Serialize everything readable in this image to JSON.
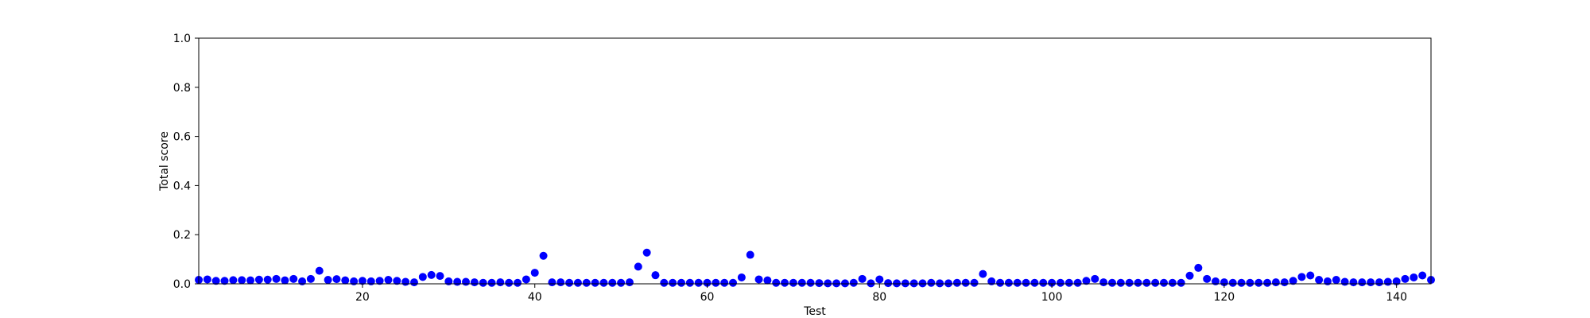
{
  "chart_data": {
    "type": "scatter",
    "title": "",
    "xlabel": "Test",
    "ylabel": "Total score",
    "xlim": [
      1,
      144
    ],
    "ylim": [
      0,
      1.0
    ],
    "xticks": [
      20,
      40,
      60,
      80,
      100,
      120,
      140
    ],
    "yticks": [
      0.0,
      0.2,
      0.4,
      0.6,
      0.8,
      1.0
    ],
    "ytick_labels": [
      "0.0",
      "0.2",
      "0.4",
      "0.6",
      "0.8",
      "1.0"
    ],
    "grid": false,
    "marker_color": "#0000ff",
    "series": [
      {
        "x": [
          1,
          2,
          3,
          4,
          5,
          6,
          7,
          8,
          9,
          10,
          11,
          12,
          13,
          14,
          15,
          16,
          17,
          18,
          19,
          20,
          21,
          22,
          23,
          24,
          25,
          26,
          27,
          28,
          29,
          30,
          31,
          32,
          33,
          34,
          35,
          36,
          37,
          38,
          39,
          40,
          41,
          42,
          43,
          44,
          45,
          46,
          47,
          48,
          49,
          50,
          51,
          52,
          53,
          54,
          55,
          56,
          57,
          58,
          59,
          60,
          61,
          62,
          63,
          64,
          65,
          66,
          67,
          68,
          69,
          70,
          71,
          72,
          73,
          74,
          75,
          76,
          77,
          78,
          79,
          80,
          81,
          82,
          83,
          84,
          85,
          86,
          87,
          88,
          89,
          90,
          91,
          92,
          93,
          94,
          95,
          96,
          97,
          98,
          99,
          100,
          101,
          102,
          103,
          104,
          105,
          106,
          107,
          108,
          109,
          110,
          111,
          112,
          113,
          114,
          115,
          116,
          117,
          118,
          119,
          120,
          121,
          122,
          123,
          124,
          125,
          126,
          127,
          128,
          129,
          130,
          131,
          132,
          133,
          134,
          135,
          136,
          137,
          138,
          139,
          140,
          141,
          142,
          143,
          144
        ],
        "y": [
          0.016,
          0.018,
          0.012,
          0.012,
          0.015,
          0.015,
          0.014,
          0.017,
          0.017,
          0.02,
          0.014,
          0.02,
          0.01,
          0.02,
          0.053,
          0.016,
          0.019,
          0.014,
          0.01,
          0.012,
          0.01,
          0.012,
          0.016,
          0.012,
          0.008,
          0.006,
          0.028,
          0.036,
          0.032,
          0.01,
          0.008,
          0.008,
          0.006,
          0.004,
          0.004,
          0.006,
          0.004,
          0.004,
          0.018,
          0.045,
          0.114,
          0.006,
          0.006,
          0.004,
          0.004,
          0.004,
          0.004,
          0.004,
          0.004,
          0.004,
          0.006,
          0.07,
          0.127,
          0.035,
          0.004,
          0.004,
          0.004,
          0.004,
          0.004,
          0.004,
          0.004,
          0.004,
          0.004,
          0.026,
          0.118,
          0.018,
          0.014,
          0.004,
          0.004,
          0.004,
          0.004,
          0.004,
          0.003,
          0.002,
          0.002,
          0.002,
          0.004,
          0.02,
          0.002,
          0.018,
          0.003,
          0.002,
          0.002,
          0.002,
          0.002,
          0.004,
          0.002,
          0.002,
          0.004,
          0.004,
          0.004,
          0.04,
          0.01,
          0.004,
          0.004,
          0.004,
          0.004,
          0.004,
          0.004,
          0.004,
          0.004,
          0.004,
          0.004,
          0.012,
          0.02,
          0.006,
          0.004,
          0.004,
          0.004,
          0.004,
          0.004,
          0.004,
          0.004,
          0.004,
          0.004,
          0.033,
          0.065,
          0.02,
          0.01,
          0.006,
          0.004,
          0.004,
          0.004,
          0.004,
          0.004,
          0.006,
          0.006,
          0.012,
          0.028,
          0.034,
          0.016,
          0.01,
          0.016,
          0.008,
          0.006,
          0.006,
          0.006,
          0.006,
          0.008,
          0.01,
          0.02,
          0.026,
          0.034,
          0.016
        ]
      }
    ]
  }
}
